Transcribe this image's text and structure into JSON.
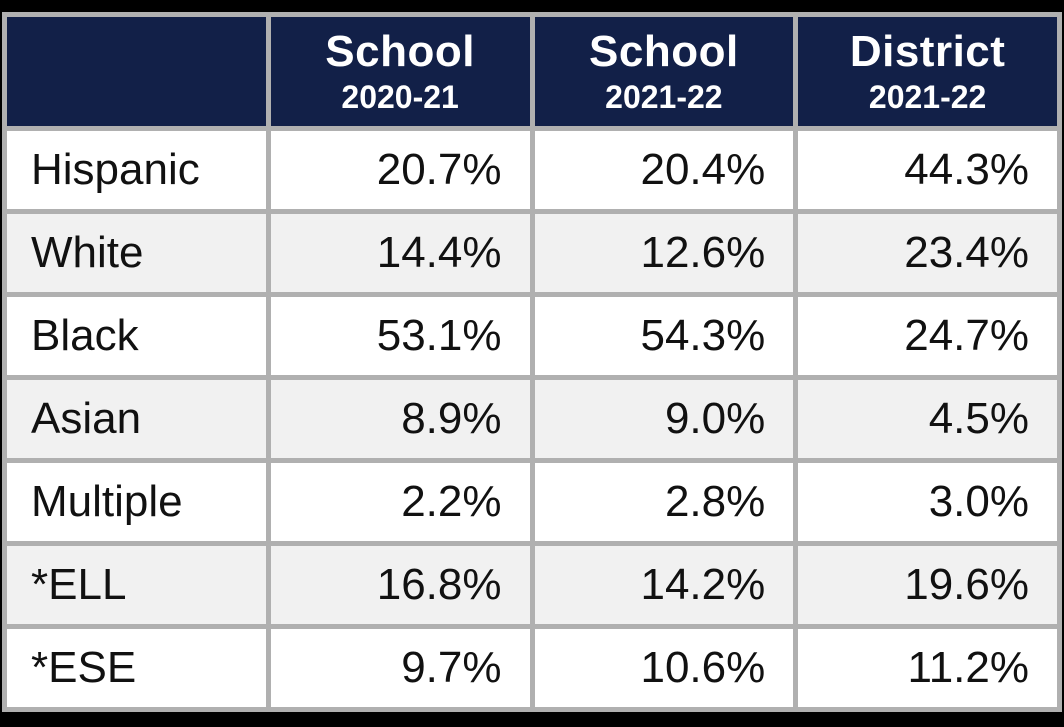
{
  "colors": {
    "page_background": "#000000",
    "header_bg": "#122048",
    "header_text": "#ffffff",
    "border_color": "#b0b0b0",
    "row_alt_bg": "#f1f1f1",
    "cell_text": "#111111"
  },
  "table": {
    "columns": [
      {
        "title": "",
        "subtitle": ""
      },
      {
        "title": "School",
        "subtitle": "2020-21"
      },
      {
        "title": "School",
        "subtitle": "2021-22"
      },
      {
        "title": "District",
        "subtitle": "2021-22"
      }
    ],
    "rows": [
      {
        "label": "Hispanic",
        "values": [
          "20.7%",
          "20.4%",
          "44.3%"
        ]
      },
      {
        "label": "White",
        "values": [
          "14.4%",
          "12.6%",
          "23.4%"
        ]
      },
      {
        "label": "Black",
        "values": [
          "53.1%",
          "54.3%",
          "24.7%"
        ]
      },
      {
        "label": "Asian",
        "values": [
          "8.9%",
          "9.0%",
          "4.5%"
        ]
      },
      {
        "label": "Multiple",
        "values": [
          "2.2%",
          "2.8%",
          "3.0%"
        ]
      },
      {
        "label": "*ELL",
        "values": [
          "16.8%",
          "14.2%",
          "19.6%"
        ]
      },
      {
        "label": "*ESE",
        "values": [
          "9.7%",
          "10.6%",
          "11.2%"
        ]
      }
    ]
  },
  "chart_data": {
    "type": "table",
    "title": "",
    "columns": [
      "",
      "School 2020-21",
      "School 2021-22",
      "District 2021-22"
    ],
    "rows": [
      [
        "Hispanic",
        "20.7%",
        "20.4%",
        "44.3%"
      ],
      [
        "White",
        "14.4%",
        "12.6%",
        "23.4%"
      ],
      [
        "Black",
        "53.1%",
        "54.3%",
        "24.7%"
      ],
      [
        "Asian",
        "8.9%",
        "9.0%",
        "4.5%"
      ],
      [
        "Multiple",
        "2.2%",
        "2.8%",
        "3.0%"
      ],
      [
        "*ELL",
        "16.8%",
        "14.2%",
        "19.6%"
      ],
      [
        "*ESE",
        "9.7%",
        "10.6%",
        "11.2%"
      ]
    ]
  }
}
